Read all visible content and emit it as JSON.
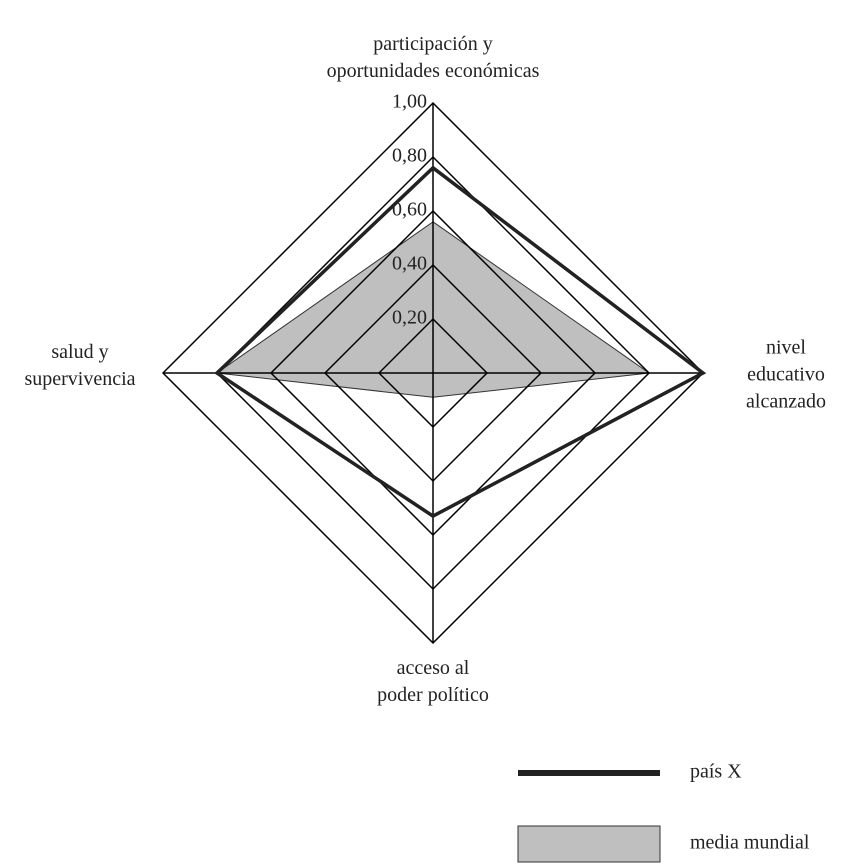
{
  "chart_data": {
    "type": "radar",
    "categories": [
      "participación y\noportunidades económicas",
      "nivel educativo\nalcanzado",
      "acceso al\npoder político",
      "salud y\nsupervivencia"
    ],
    "series": [
      {
        "name": "media mundial",
        "color": "#bfbfbf",
        "fill": true,
        "values": [
          0.56,
          0.8,
          0.09,
          0.8
        ]
      },
      {
        "name": "país X",
        "color": "#222222",
        "fill": false,
        "values": [
          0.76,
          1.0,
          0.53,
          0.8
        ]
      }
    ],
    "rlim": [
      0,
      1
    ],
    "rticks": [
      {
        "value": 0.2,
        "label": "0,20"
      },
      {
        "value": 0.4,
        "label": "0,40"
      },
      {
        "value": 0.6,
        "label": "0,60"
      },
      {
        "value": 0.8,
        "label": "0,80"
      },
      {
        "value": 1.0,
        "label": "1,00"
      }
    ],
    "grid": true
  }
}
